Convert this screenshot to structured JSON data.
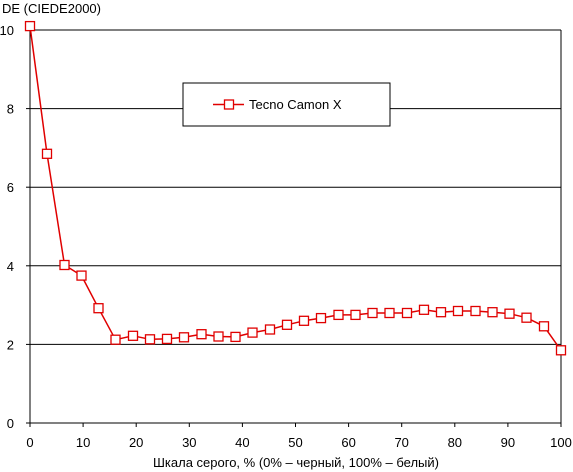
{
  "chart_data": {
    "type": "line",
    "title": "",
    "ylabel": "DE (CIEDE2000)",
    "xlabel": "Шкала серого, % (0% – черный, 100% – белый)",
    "xlim": [
      0,
      100
    ],
    "ylim": [
      0,
      10
    ],
    "x_ticks": [
      "0",
      "10",
      "20",
      "30",
      "40",
      "50",
      "60",
      "70",
      "80",
      "90",
      "100"
    ],
    "y_ticks": [
      "0",
      "2",
      "4",
      "6",
      "8",
      "10"
    ],
    "grid": "horizontal",
    "legend_position": "top-center",
    "series": [
      {
        "name": "Tecno Camon X",
        "color": "#e00000",
        "marker": "open-square",
        "x": [
          0,
          3.2,
          6.5,
          9.7,
          12.9,
          16.1,
          19.4,
          22.6,
          25.8,
          29.0,
          32.3,
          35.5,
          38.7,
          41.9,
          45.2,
          48.4,
          51.6,
          54.8,
          58.1,
          61.3,
          64.5,
          67.7,
          71.0,
          74.2,
          77.4,
          80.6,
          83.9,
          87.1,
          90.3,
          93.5,
          96.8,
          100
        ],
        "values": [
          10.1,
          6.85,
          4.02,
          3.75,
          2.92,
          2.12,
          2.22,
          2.13,
          2.14,
          2.18,
          2.26,
          2.2,
          2.19,
          2.3,
          2.38,
          2.5,
          2.6,
          2.67,
          2.75,
          2.75,
          2.8,
          2.8,
          2.8,
          2.88,
          2.82,
          2.85,
          2.85,
          2.82,
          2.78,
          2.68,
          2.46,
          1.85
        ]
      }
    ]
  }
}
